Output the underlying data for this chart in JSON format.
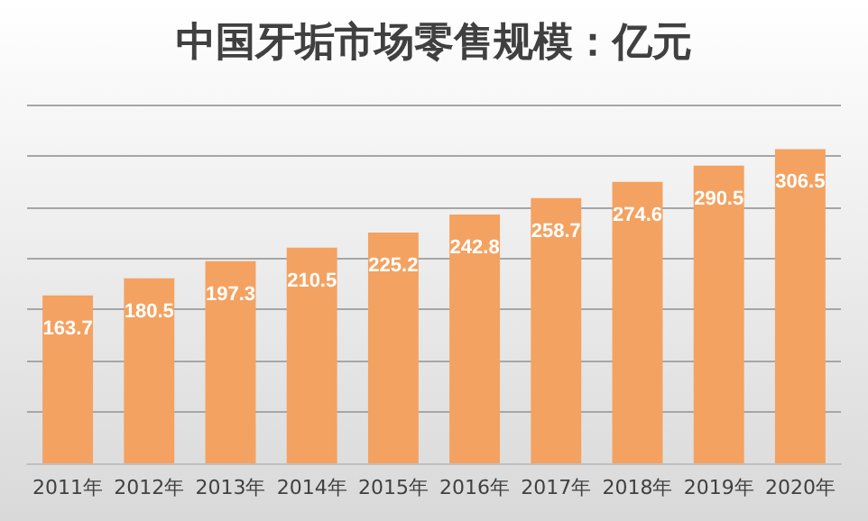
{
  "chart_data": {
    "type": "bar",
    "title": "中国牙垢市场零售规模：亿元",
    "categories": [
      "2011年",
      "2012年",
      "2013年",
      "2014年",
      "2015年",
      "2016年",
      "2017年",
      "2018年",
      "2019年",
      "2020年"
    ],
    "values": [
      163.7,
      180.5,
      197.3,
      210.5,
      225.2,
      242.8,
      258.7,
      274.6,
      290.5,
      306.5
    ],
    "color": "#f4a261",
    "ylim": [
      0,
      350
    ],
    "yticks": [
      0,
      50,
      100,
      150,
      200,
      250,
      300,
      350
    ],
    "grid": "y",
    "tick_labels": "x",
    "data_labels": true
  }
}
